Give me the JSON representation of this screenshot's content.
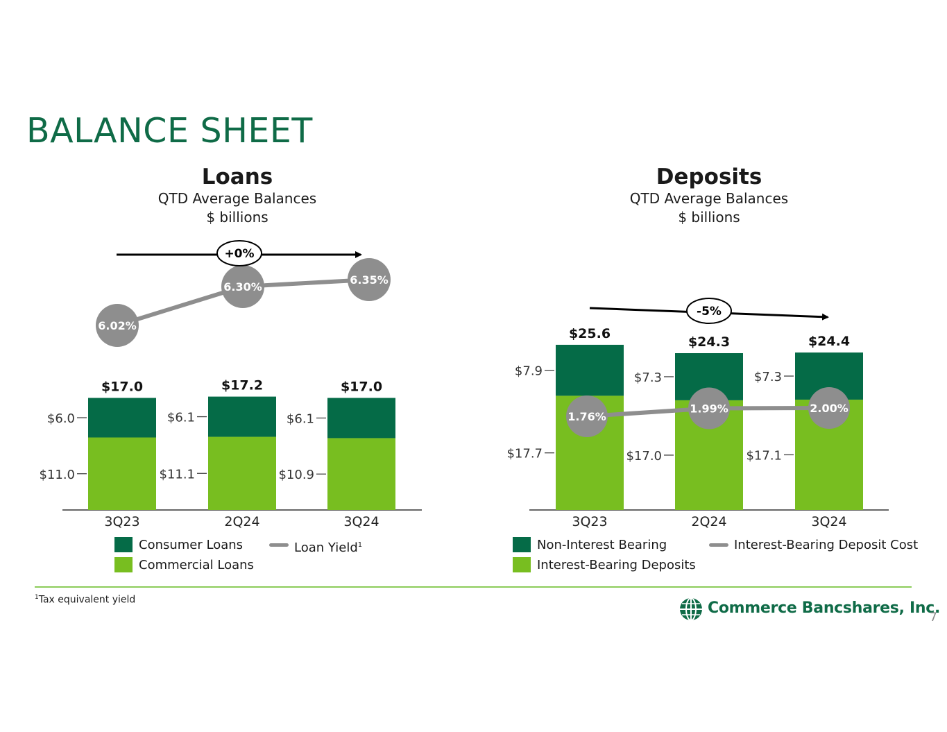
{
  "page": {
    "title": "BALANCE SHEET",
    "footnote_mark": "1",
    "footnote": "Tax equivalent yield",
    "company": "Commerce Bancshares, Inc.",
    "page_number": "7"
  },
  "colors": {
    "dark_green": "#056b47",
    "light_green": "#78be20",
    "gray": "#8e8e8e",
    "title_green": "#0f6b47"
  },
  "loans": {
    "title": "Loans",
    "subtitle1": "QTD Average Balances",
    "subtitle2": "$ billions",
    "change_label": "+0%",
    "legend": {
      "consumer": "Consumer Loans",
      "commercial": "Commercial Loans",
      "yield": "Loan Yield",
      "yield_sup": "1"
    }
  },
  "deposits": {
    "title": "Deposits",
    "subtitle1": "QTD Average Balances",
    "subtitle2": "$ billions",
    "change_label": "-5%",
    "legend": {
      "non_interest": "Non-Interest Bearing",
      "interest": "Interest-Bearing Deposits",
      "cost": "Interest-Bearing Deposit Cost"
    }
  },
  "chart_data": [
    {
      "type": "bar",
      "stacked": true,
      "title": "Loans",
      "categories": [
        "3Q23",
        "2Q24",
        "3Q24"
      ],
      "series": [
        {
          "name": "Commercial Loans",
          "values": [
            11.0,
            11.1,
            10.9
          ],
          "labels": [
            "$11.0",
            "$11.1",
            "$10.9"
          ],
          "color": "#78be20"
        },
        {
          "name": "Consumer Loans",
          "values": [
            6.0,
            6.1,
            6.1
          ],
          "labels": [
            "$6.0",
            "$6.1",
            "$6.1"
          ],
          "color": "#056b47"
        }
      ],
      "totals": [
        "$17.0",
        "$17.2",
        "$17.0"
      ],
      "line": {
        "name": "Loan Yield",
        "values": [
          6.02,
          6.3,
          6.35
        ],
        "labels": [
          "6.02%",
          "6.30%",
          "6.35%"
        ],
        "color": "#8e8e8e"
      }
    },
    {
      "type": "bar",
      "stacked": true,
      "title": "Deposits",
      "categories": [
        "3Q23",
        "2Q24",
        "3Q24"
      ],
      "series": [
        {
          "name": "Interest-Bearing Deposits",
          "values": [
            17.7,
            17.0,
            17.1
          ],
          "labels": [
            "$17.7",
            "$17.0",
            "$17.1"
          ],
          "color": "#78be20"
        },
        {
          "name": "Non-Interest Bearing",
          "values": [
            7.9,
            7.3,
            7.3
          ],
          "labels": [
            "$7.9",
            "$7.3",
            "$7.3"
          ],
          "color": "#056b47"
        }
      ],
      "totals": [
        "$25.6",
        "$24.3",
        "$24.4"
      ],
      "line": {
        "name": "Interest-Bearing Deposit Cost",
        "values": [
          1.76,
          1.99,
          2.0
        ],
        "labels": [
          "1.76%",
          "1.99%",
          "2.00%"
        ],
        "color": "#8e8e8e"
      }
    }
  ]
}
